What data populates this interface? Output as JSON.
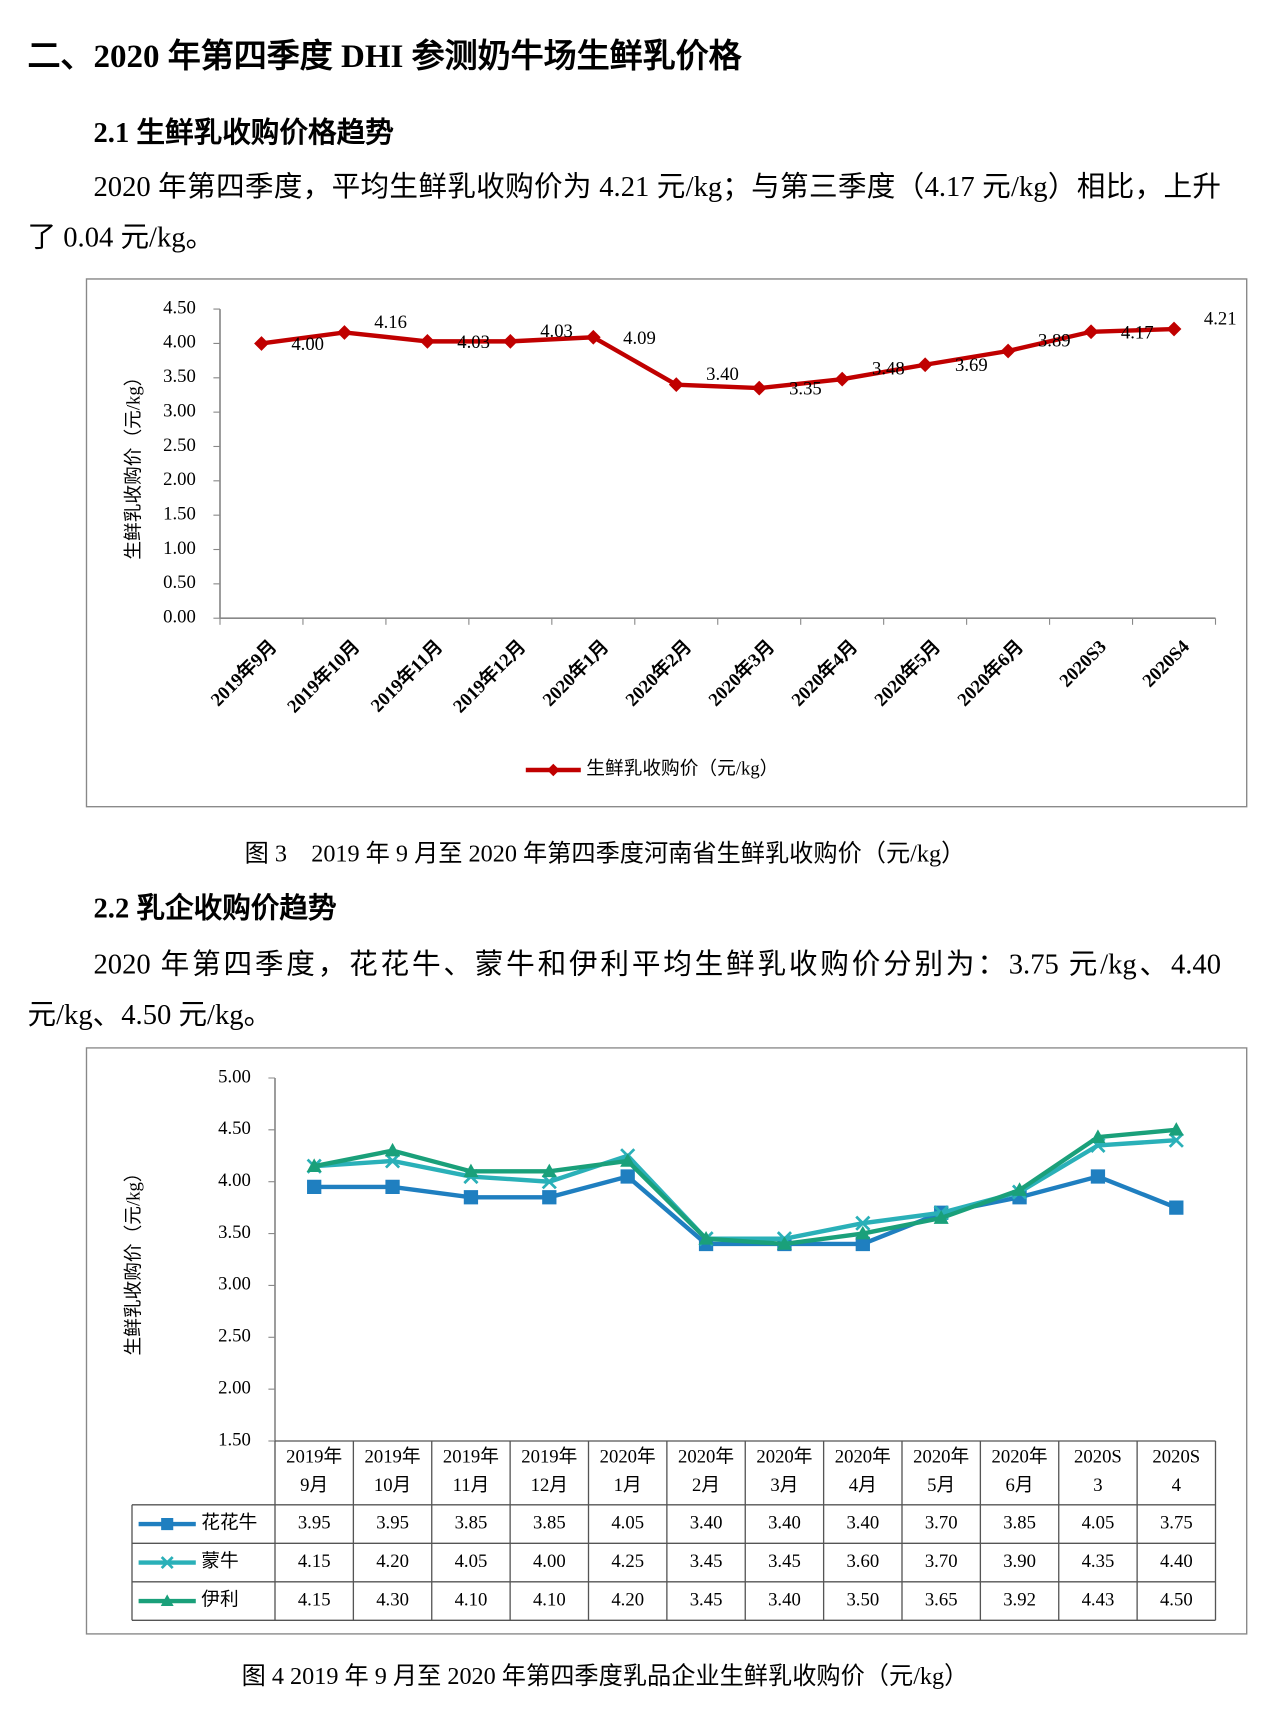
{
  "heading": "二、2020 年第四季度 DHI 参测奶牛场生鲜乳价格",
  "section1": {
    "title": "2.1  生鲜乳收购价格趋势",
    "paragraph": "2020 年第四季度，平均生鲜乳收购价为 4.21 元/kg；与第三季度（4.17 元/kg）相比，上升了 0.04 元/kg。"
  },
  "caption1": "图 3　2019 年 9 月至 2020 年第四季度河南省生鲜乳收购价（元/kg）",
  "section2": {
    "title": "2.2  乳企收购价趋势",
    "paragraph": "2020 年第四季度，花花牛、蒙牛和伊利平均生鲜乳收购价分别为：3.75 元/kg、4.40 元/kg、4.50 元/kg。"
  },
  "caption2": "图 4 2019 年 9 月至 2020 年第四季度乳品企业生鲜乳收购价（元/kg）",
  "chart_data": [
    {
      "type": "line",
      "y_label": "生鲜乳收购价（元/kg）",
      "legend": "bottom",
      "categories": [
        "2019年9月",
        "2019年10月",
        "2019年11月",
        "2019年12月",
        "2020年1月",
        "2020年2月",
        "2020年3月",
        "2020年4月",
        "2020年5月",
        "2020年6月",
        "2020S3",
        "2020S4"
      ],
      "series": [
        {
          "name": "生鲜乳收购价（元/kg）",
          "color": "#c00000",
          "marker": "diamond",
          "values": [
            4.0,
            4.16,
            4.03,
            4.03,
            4.09,
            3.4,
            3.35,
            3.48,
            3.69,
            3.89,
            4.17,
            4.21
          ],
          "value_labels": [
            "4.00",
            "4.16",
            "4.03",
            "4.03",
            "4.09",
            "3.40",
            "3.35",
            "3.48",
            "3.69",
            "3.89",
            "4.17",
            "4.21"
          ]
        }
      ],
      "ylim": [
        0,
        4.5
      ],
      "yticks": [
        {
          "value": 0,
          "label": "0.00"
        },
        {
          "value": 0.5,
          "label": "0.50"
        },
        {
          "value": 1,
          "label": "1.00"
        },
        {
          "value": 1.5,
          "label": "1.50"
        },
        {
          "value": 2,
          "label": "2.00"
        },
        {
          "value": 2.5,
          "label": "2.50"
        },
        {
          "value": 3,
          "label": "3.00"
        },
        {
          "value": 3.5,
          "label": "3.50"
        },
        {
          "value": 4,
          "label": "4.00"
        },
        {
          "value": 4.5,
          "label": "4.50"
        }
      ]
    },
    {
      "type": "line",
      "y_label": "生鲜乳收购价（元/kg）",
      "legend": "data-table",
      "categories": [
        "2019年9月",
        "2019年10月",
        "2019年11月",
        "2019年12月",
        "2020年1月",
        "2020年2月",
        "2020年3月",
        "2020年4月",
        "2020年5月",
        "2020年6月",
        "2020S3",
        "2020S4"
      ],
      "series": [
        {
          "name": "花花牛",
          "color": "#1f7fc0",
          "marker": "square",
          "values": [
            3.95,
            3.95,
            3.85,
            3.85,
            4.05,
            3.4,
            3.4,
            3.4,
            3.7,
            3.85,
            4.05,
            3.75
          ],
          "value_labels": [
            "3.95",
            "3.95",
            "3.85",
            "3.85",
            "4.05",
            "3.40",
            "3.40",
            "3.40",
            "3.70",
            "3.85",
            "4.05",
            "3.75"
          ]
        },
        {
          "name": "蒙牛",
          "color": "#2ab0b8",
          "marker": "x",
          "values": [
            4.15,
            4.2,
            4.05,
            4.0,
            4.25,
            3.45,
            3.45,
            3.6,
            3.7,
            3.9,
            4.35,
            4.4
          ],
          "value_labels": [
            "4.15",
            "4.20",
            "4.05",
            "4.00",
            "4.25",
            "3.45",
            "3.45",
            "3.60",
            "3.70",
            "3.90",
            "4.35",
            "4.40"
          ]
        },
        {
          "name": "伊利",
          "color": "#1aa07a",
          "marker": "triangle",
          "values": [
            4.15,
            4.3,
            4.1,
            4.1,
            4.2,
            3.45,
            3.4,
            3.5,
            3.65,
            3.92,
            4.43,
            4.5
          ],
          "value_labels": [
            "4.15",
            "4.30",
            "4.10",
            "4.10",
            "4.20",
            "3.45",
            "3.40",
            "3.50",
            "3.65",
            "3.92",
            "4.43",
            "4.50"
          ]
        }
      ],
      "ylim": [
        1.5,
        5
      ],
      "yticks": [
        {
          "value": 1.5,
          "label": "1.50"
        },
        {
          "value": 2,
          "label": "2.00"
        },
        {
          "value": 2.5,
          "label": "2.50"
        },
        {
          "value": 3,
          "label": "3.00"
        },
        {
          "value": 3.5,
          "label": "3.50"
        },
        {
          "value": 4,
          "label": "4.00"
        },
        {
          "value": 4.5,
          "label": "4.50"
        },
        {
          "value": 5,
          "label": "5.00"
        }
      ]
    }
  ]
}
